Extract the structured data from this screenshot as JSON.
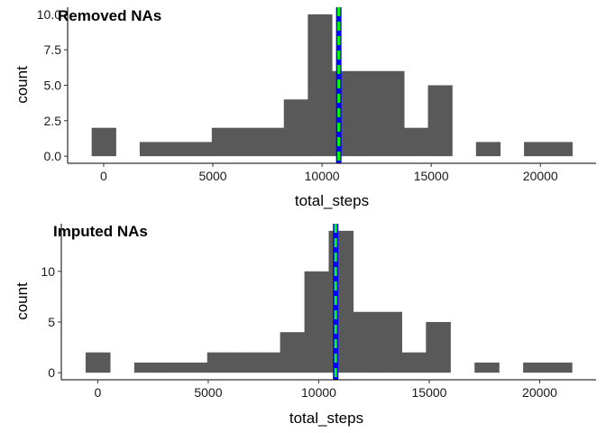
{
  "figure": {
    "background": "#ffffff"
  },
  "chart_data": [
    {
      "type": "bar",
      "subtype": "histogram",
      "title": "Removed NAs",
      "xlabel": "total_steps",
      "ylabel": "count",
      "bin_width": 1100,
      "bars": [
        {
          "x": 0,
          "count": 2
        },
        {
          "x": 2200,
          "count": 1
        },
        {
          "x": 3300,
          "count": 1
        },
        {
          "x": 4400,
          "count": 1
        },
        {
          "x": 5500,
          "count": 2
        },
        {
          "x": 6600,
          "count": 2
        },
        {
          "x": 7700,
          "count": 2
        },
        {
          "x": 8800,
          "count": 4
        },
        {
          "x": 9900,
          "count": 10
        },
        {
          "x": 11000,
          "count": 6
        },
        {
          "x": 12100,
          "count": 6
        },
        {
          "x": 13200,
          "count": 6
        },
        {
          "x": 14300,
          "count": 2
        },
        {
          "x": 15400,
          "count": 5
        },
        {
          "x": 17600,
          "count": 1
        },
        {
          "x": 19800,
          "count": 1
        },
        {
          "x": 20900,
          "count": 1
        }
      ],
      "xlim": [
        -1650,
        22550
      ],
      "ylim": [
        -0.5,
        10.5
      ],
      "x_ticks": [
        0,
        5000,
        10000,
        15000,
        20000
      ],
      "x_tick_labels": [
        "0",
        "5000",
        "10000",
        "15000",
        "20000"
      ],
      "y_ticks": [
        0,
        2.5,
        5,
        7.5,
        10
      ],
      "y_tick_labels": [
        "0.0",
        "2.5",
        "5.0",
        "7.5",
        "10.0"
      ],
      "vlines": [
        {
          "x": 10766,
          "color": "#0000ff",
          "style": "solid"
        },
        {
          "x": 10765,
          "color": "#00ff00",
          "style": "dashed"
        }
      ],
      "bar_color": "#595959",
      "grid": false
    },
    {
      "type": "bar",
      "subtype": "histogram",
      "title": "Imputed NAs",
      "xlabel": "total_steps",
      "ylabel": "count",
      "bin_width": 1100,
      "bars": [
        {
          "x": 0,
          "count": 2
        },
        {
          "x": 2200,
          "count": 1
        },
        {
          "x": 3300,
          "count": 1
        },
        {
          "x": 4400,
          "count": 1
        },
        {
          "x": 5500,
          "count": 2
        },
        {
          "x": 6600,
          "count": 2
        },
        {
          "x": 7700,
          "count": 2
        },
        {
          "x": 8800,
          "count": 4
        },
        {
          "x": 9900,
          "count": 10
        },
        {
          "x": 11000,
          "count": 14
        },
        {
          "x": 12100,
          "count": 6
        },
        {
          "x": 13200,
          "count": 6
        },
        {
          "x": 14300,
          "count": 2
        },
        {
          "x": 15400,
          "count": 5
        },
        {
          "x": 17600,
          "count": 1
        },
        {
          "x": 19800,
          "count": 1
        },
        {
          "x": 20900,
          "count": 1
        }
      ],
      "xlim": [
        -1650,
        22550
      ],
      "ylim": [
        -0.7,
        14.7
      ],
      "x_ticks": [
        0,
        5000,
        10000,
        15000,
        20000
      ],
      "x_tick_labels": [
        "0",
        "5000",
        "10000",
        "15000",
        "20000"
      ],
      "y_ticks": [
        0,
        5,
        10
      ],
      "y_tick_labels": [
        "0",
        "5",
        "10"
      ],
      "vlines": [
        {
          "x": 10766,
          "color": "#0000ff",
          "style": "solid"
        },
        {
          "x": 10766,
          "color": "#00ff00",
          "style": "dashed"
        }
      ],
      "bar_color": "#595959",
      "grid": false
    }
  ]
}
